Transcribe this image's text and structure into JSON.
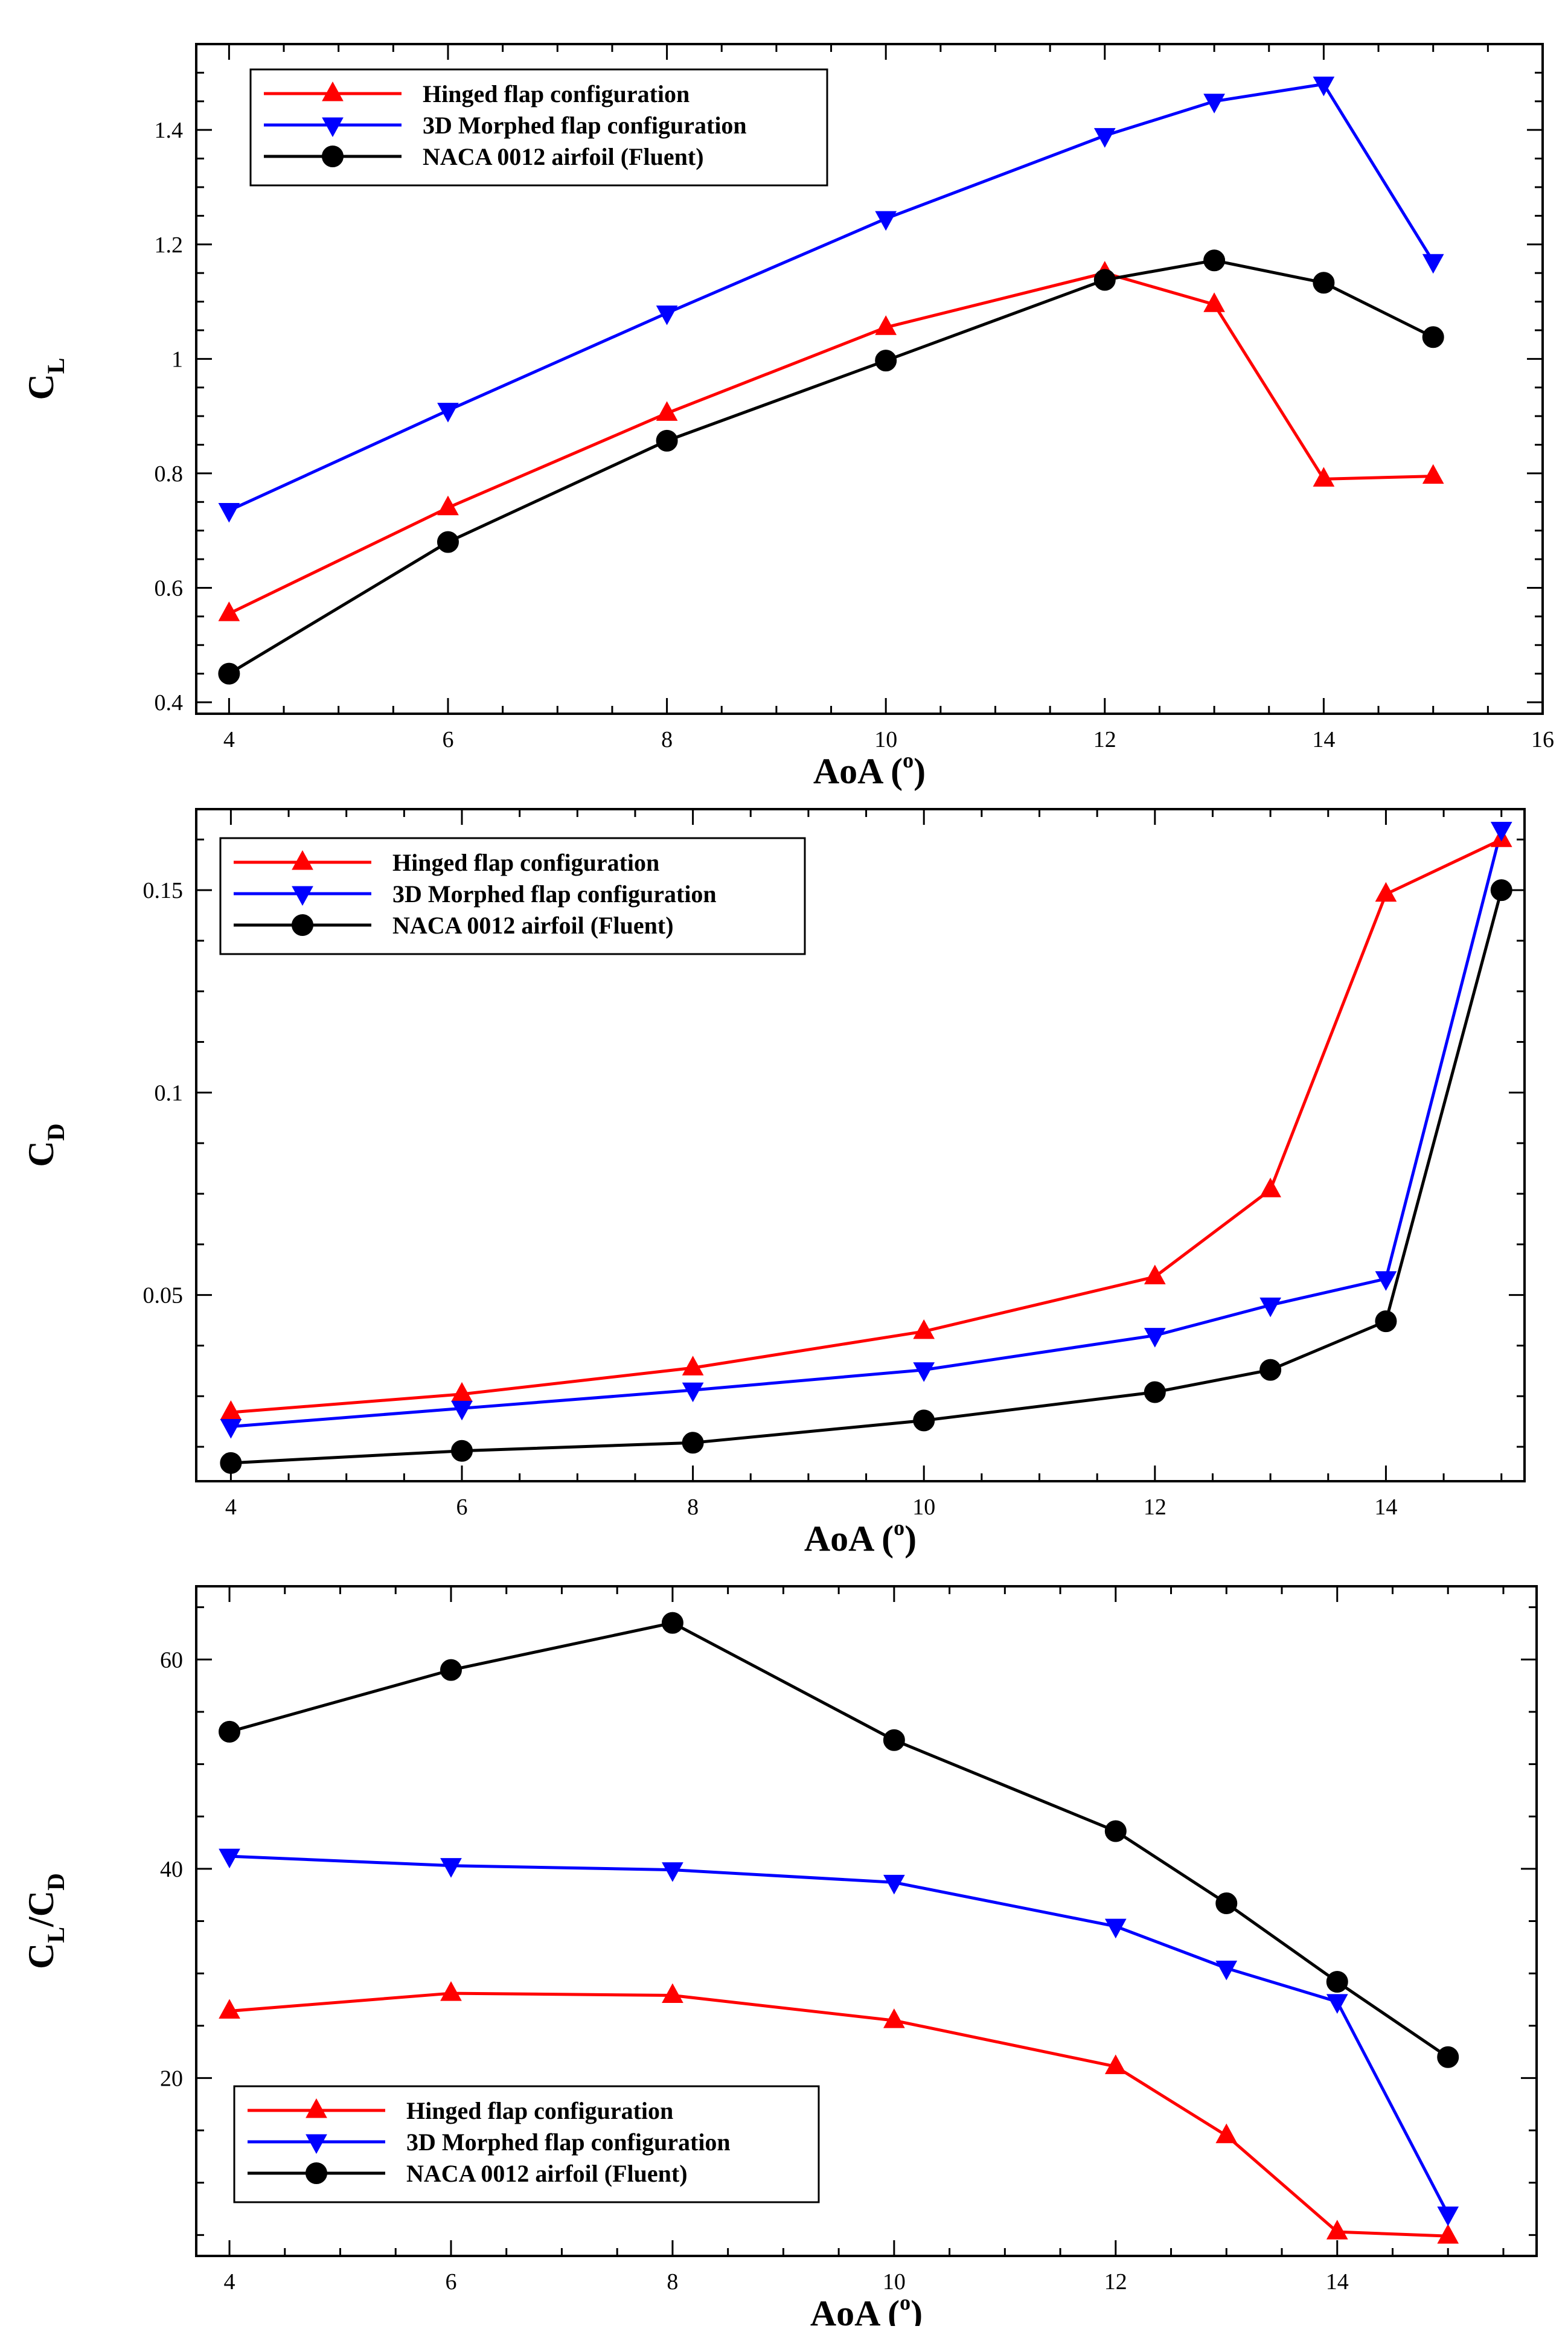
{
  "chart_data": [
    {
      "type": "line",
      "title": "",
      "xlabel": "AoA (o)",
      "ylabel": "CL",
      "xlim": [
        3.7,
        16
      ],
      "ylim": [
        0.38,
        1.55
      ],
      "xticks": [
        4,
        6,
        8,
        10,
        12,
        14,
        16
      ],
      "yticks": [
        0.4,
        0.6,
        0.8,
        1,
        1.2,
        1.4
      ],
      "xtick_labels": [
        "4",
        "6",
        "8",
        "10",
        "12",
        "14",
        "16"
      ],
      "ytick_labels": [
        "0.4",
        "0.6",
        "0.8",
        "1",
        "1.2",
        "1.4"
      ],
      "legend_position": "top-left",
      "series": [
        {
          "name": "Hinged flap configuration",
          "color": "#ff0000",
          "marker": "triangle-up",
          "x": [
            4,
            6,
            8,
            10,
            12,
            13,
            14,
            15
          ],
          "values": [
            0.555,
            0.74,
            0.905,
            1.055,
            1.15,
            1.095,
            0.79,
            0.795
          ]
        },
        {
          "name": "3D Morphed flap configuration",
          "color": "#0000ff",
          "marker": "triangle-down",
          "x": [
            4,
            6,
            8,
            10,
            12,
            13,
            14,
            15
          ],
          "values": [
            0.735,
            0.91,
            1.08,
            1.245,
            1.39,
            1.45,
            1.48,
            1.17
          ]
        },
        {
          "name": "NACA 0012 airfoil (Fluent)",
          "color": "#000000",
          "marker": "circle",
          "x": [
            4,
            6,
            8,
            10,
            12,
            13,
            14,
            15
          ],
          "values": [
            0.45,
            0.68,
            0.857,
            0.997,
            1.138,
            1.172,
            1.133,
            1.038
          ]
        }
      ]
    },
    {
      "type": "line",
      "title": "",
      "xlabel": "AoA (o)",
      "ylabel": "CD",
      "xlim": [
        3.7,
        15.2
      ],
      "ylim": [
        0.004,
        0.17
      ],
      "xticks": [
        4,
        6,
        8,
        10,
        12,
        14
      ],
      "yticks": [
        0.05,
        0.1,
        0.15
      ],
      "xtick_labels": [
        "4",
        "6",
        "8",
        "10",
        "12",
        "14"
      ],
      "ytick_labels": [
        "0.05",
        "0.1",
        "0.15"
      ],
      "legend_position": "top-left",
      "series": [
        {
          "name": "Hinged flap configuration",
          "color": "#ff0000",
          "marker": "triangle-up",
          "x": [
            4,
            6,
            8,
            10,
            12,
            13,
            14,
            15
          ],
          "values": [
            0.021,
            0.0255,
            0.032,
            0.041,
            0.0545,
            0.076,
            0.149,
            0.1625
          ]
        },
        {
          "name": "3D Morphed flap configuration",
          "color": "#0000ff",
          "marker": "triangle-down",
          "x": [
            4,
            6,
            8,
            10,
            12,
            13,
            14,
            15
          ],
          "values": [
            0.0175,
            0.022,
            0.0265,
            0.0315,
            0.04,
            0.0475,
            0.054,
            0.165
          ]
        },
        {
          "name": "NACA 0012 airfoil (Fluent)",
          "color": "#000000",
          "marker": "circle",
          "x": [
            4,
            6,
            8,
            10,
            12,
            13,
            14,
            15
          ],
          "values": [
            0.0085,
            0.0115,
            0.0135,
            0.019,
            0.026,
            0.0315,
            0.0435,
            0.15
          ]
        }
      ]
    },
    {
      "type": "line",
      "title": "",
      "xlabel": "AoA (o)",
      "ylabel": "CL/CD",
      "xlim": [
        3.7,
        15.8
      ],
      "ylim": [
        3,
        67
      ],
      "xticks": [
        4,
        6,
        8,
        10,
        12,
        14
      ],
      "yticks": [
        20,
        40,
        60
      ],
      "xtick_labels": [
        "4",
        "6",
        "8",
        "10",
        "12",
        "14"
      ],
      "ytick_labels": [
        "20",
        "40",
        "60"
      ],
      "legend_position": "bottom-left",
      "series": [
        {
          "name": "Hinged flap configuration",
          "color": "#ff0000",
          "marker": "triangle-up",
          "x": [
            4,
            6,
            8,
            10,
            12,
            13,
            14,
            15
          ],
          "values": [
            26.4,
            28.1,
            27.9,
            25.5,
            21.1,
            14.5,
            5.3,
            4.9
          ]
        },
        {
          "name": "3D Morphed flap configuration",
          "color": "#0000ff",
          "marker": "triangle-down",
          "x": [
            4,
            6,
            8,
            10,
            12,
            13,
            14,
            15
          ],
          "values": [
            41.2,
            40.3,
            39.9,
            38.7,
            34.5,
            30.5,
            27.3,
            7.0
          ]
        },
        {
          "name": "NACA 0012 airfoil (Fluent)",
          "color": "#000000",
          "marker": "circle",
          "x": [
            4,
            6,
            8,
            10,
            12,
            13,
            14,
            15
          ],
          "values": [
            53.1,
            59.0,
            63.5,
            52.3,
            43.6,
            36.7,
            29.2,
            22.0
          ]
        }
      ]
    }
  ]
}
